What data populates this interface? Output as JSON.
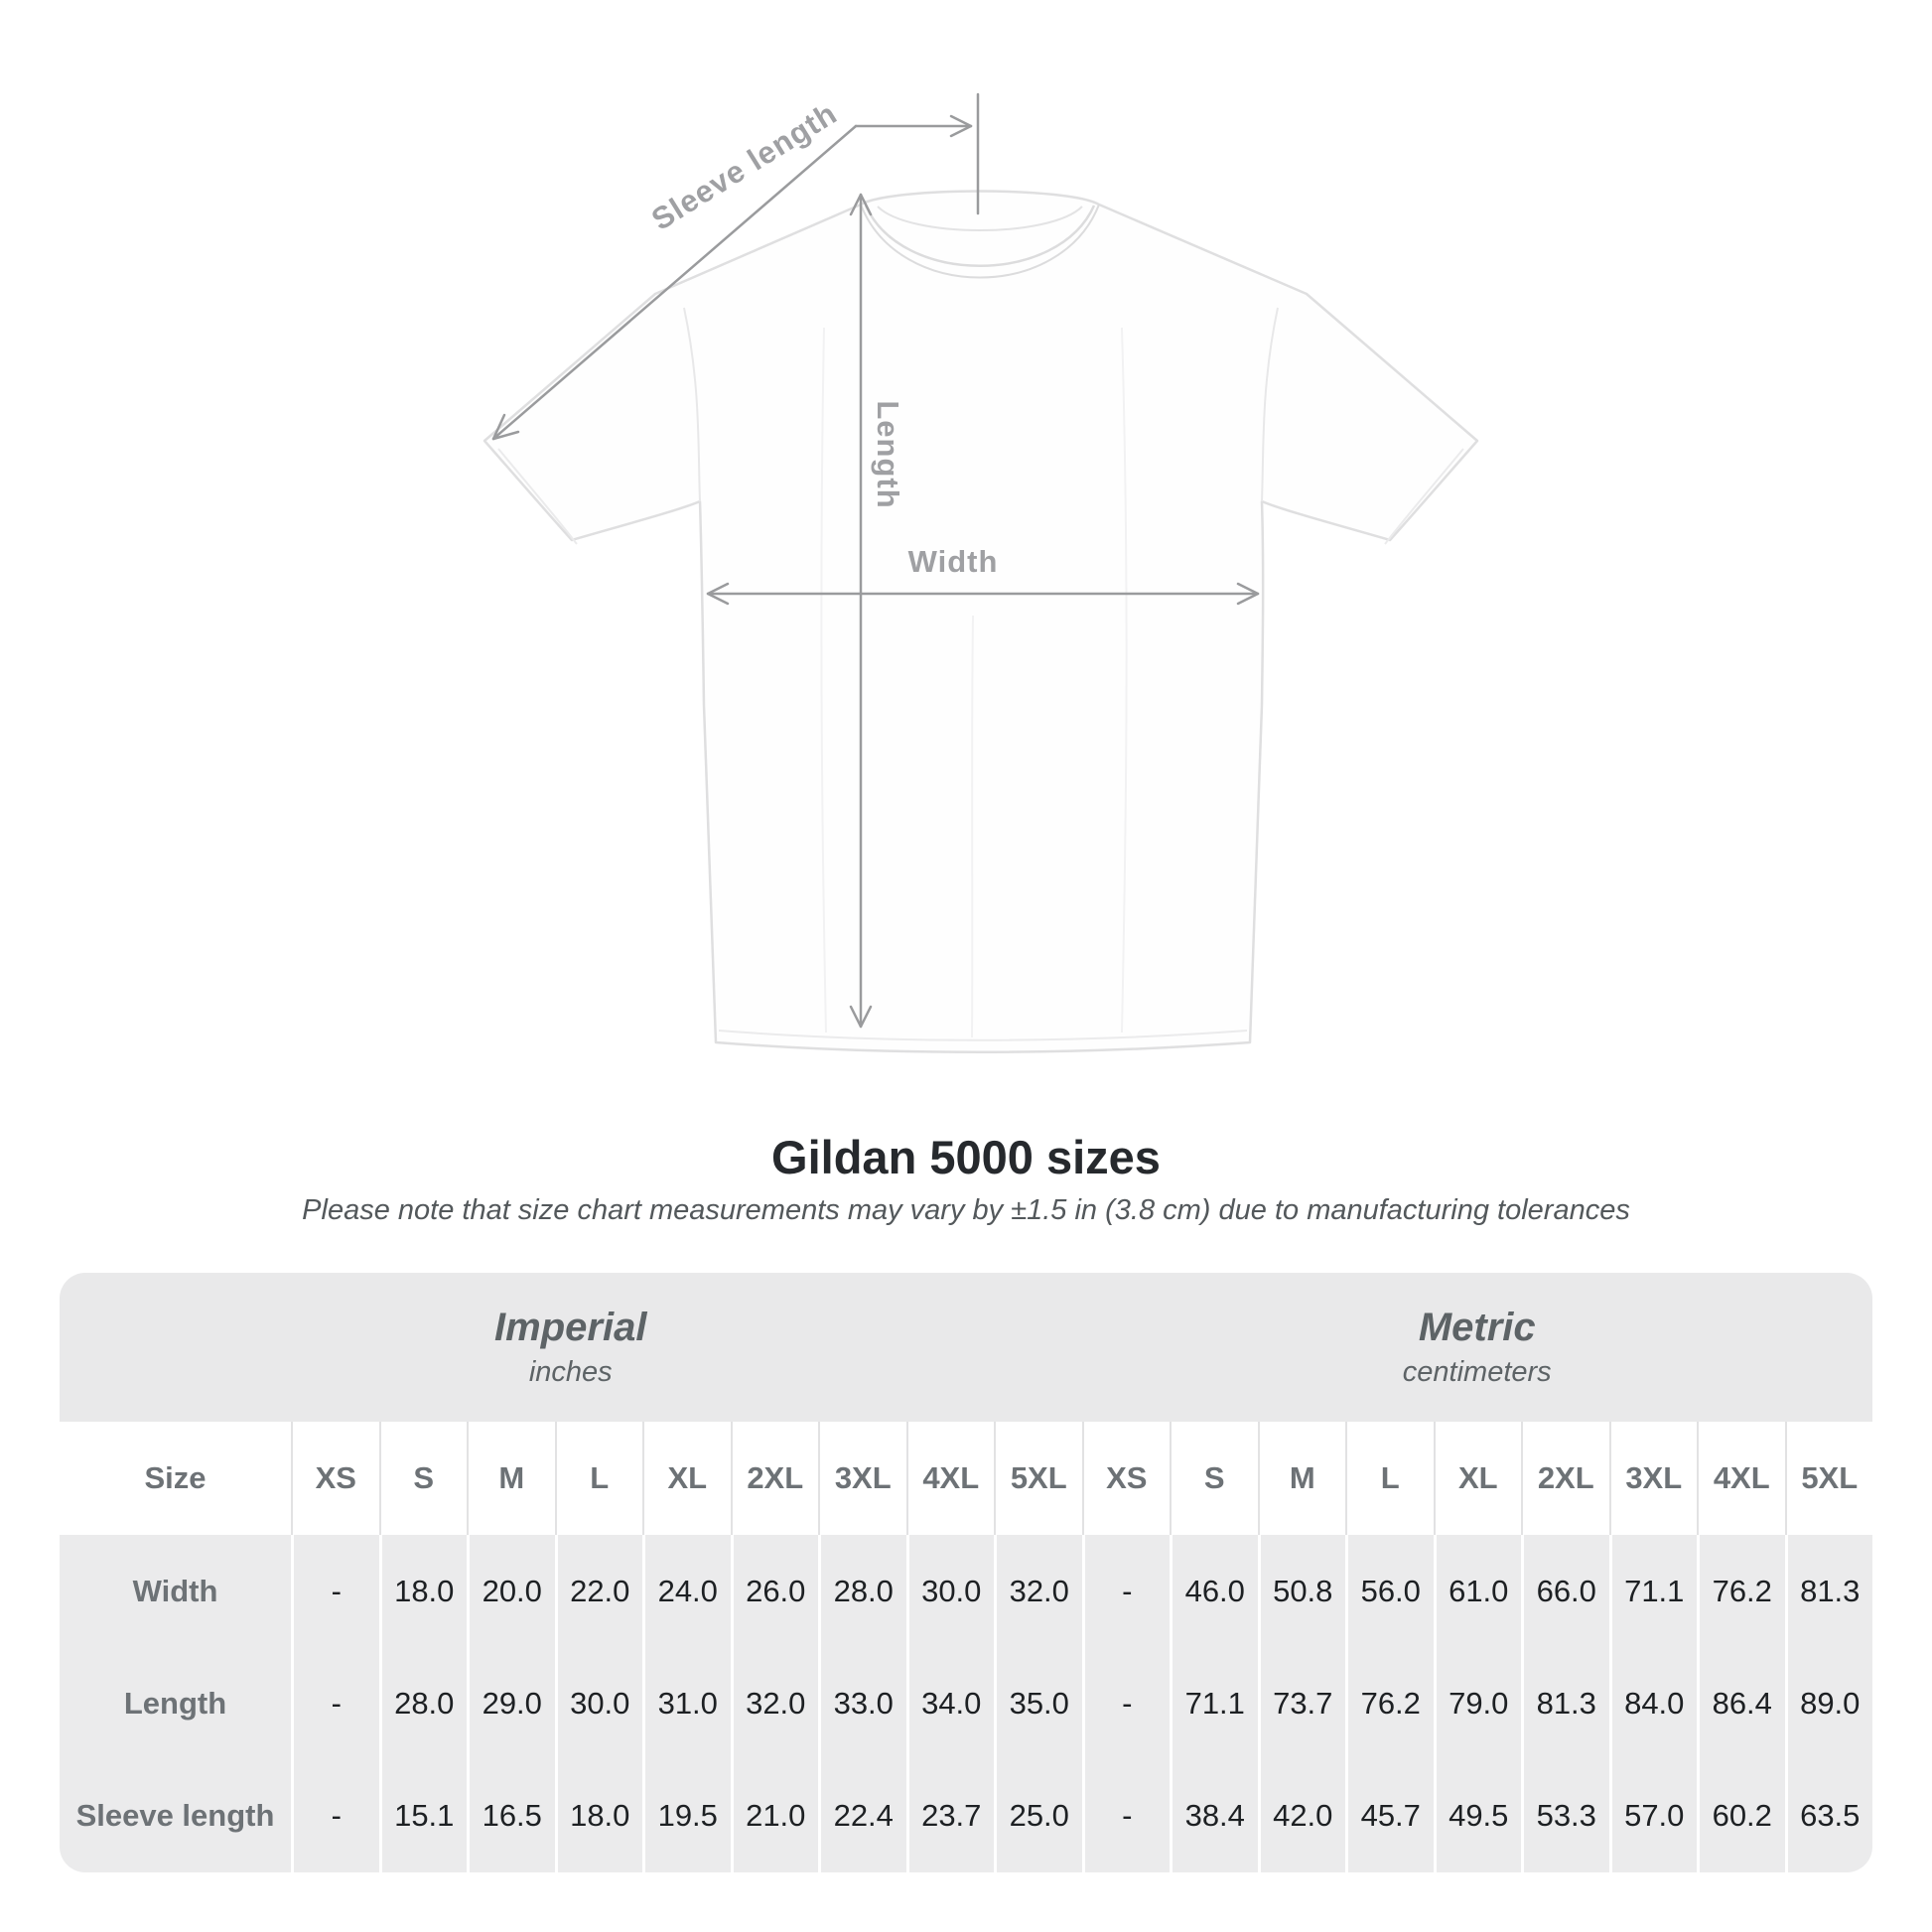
{
  "title": "Gildan 5000 sizes",
  "note": "Please note that size chart measurements may vary by ±1.5 in (3.8 cm) due to manufacturing tolerances",
  "diagram": {
    "labels": {
      "sleeve": "Sleeve length",
      "length": "Length",
      "width": "Width"
    }
  },
  "table": {
    "size_label": "Size",
    "sections": [
      {
        "title": "Imperial",
        "unit": "inches"
      },
      {
        "title": "Metric",
        "unit": "centimeters"
      }
    ],
    "sizes": [
      "XS",
      "S",
      "M",
      "L",
      "XL",
      "2XL",
      "3XL",
      "4XL",
      "5XL"
    ],
    "rows": [
      {
        "label": "Width",
        "imperial": [
          "-",
          "18.0",
          "20.0",
          "22.0",
          "24.0",
          "26.0",
          "28.0",
          "30.0",
          "32.0"
        ],
        "metric": [
          "-",
          "46.0",
          "50.8",
          "56.0",
          "61.0",
          "66.0",
          "71.1",
          "76.2",
          "81.3"
        ]
      },
      {
        "label": "Length",
        "imperial": [
          "-",
          "28.0",
          "29.0",
          "30.0",
          "31.0",
          "32.0",
          "33.0",
          "34.0",
          "35.0"
        ],
        "metric": [
          "-",
          "71.1",
          "73.7",
          "76.2",
          "79.0",
          "81.3",
          "84.0",
          "86.4",
          "89.0"
        ]
      },
      {
        "label": "Sleeve length",
        "imperial": [
          "-",
          "15.1",
          "16.5",
          "18.0",
          "19.5",
          "21.0",
          "22.4",
          "23.7",
          "25.0"
        ],
        "metric": [
          "-",
          "38.4",
          "42.0",
          "45.7",
          "49.5",
          "53.3",
          "57.0",
          "60.2",
          "63.5"
        ]
      }
    ]
  },
  "colors": {
    "arrow_gray": "#9a9b9d",
    "label_gray": "#9fa0a3",
    "band_gray": "#e9e9ea",
    "row_gray": "#ebebec",
    "header_text": "#6d7276",
    "value_text": "#1d2023",
    "title_text": "#26292d"
  }
}
